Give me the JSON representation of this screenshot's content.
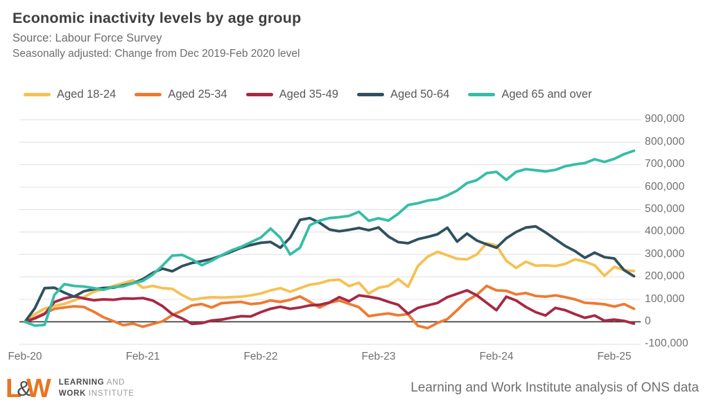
{
  "header": {
    "title": "Economic inactivity levels by age group",
    "source": "Source: Labour Force Survey",
    "note": "Seasonally adjusted: Change from Dec 2019-Feb 2020 level"
  },
  "footer": {
    "logo_l": "L",
    "logo_amp": "&",
    "logo_w": "W",
    "logo_line1_bold": "LEARNING",
    "logo_line1_rest": " AND",
    "logo_line2_bold": "WORK",
    "logo_line2_rest": " INSTITUTE",
    "credit": "Learning and Work Institute analysis of ONS data"
  },
  "colors": {
    "title_text": "#3e3e3e",
    "subtitle_text": "#6c6c6c",
    "axis_text": "#6f6f6f",
    "legend_text": "#58585a",
    "logo_orange": "#e87524",
    "logo_dark": "#4a4a4a"
  },
  "chart_data": {
    "type": "line",
    "title": "Economic inactivity levels by age group",
    "x_frequency": "monthly",
    "values_unit": "thousands",
    "ylim_thousands": [
      -100,
      900
    ],
    "grid": true,
    "grid_color": "#e3e3e3",
    "zero_line_color": "#404040",
    "legend_position": "top",
    "y_ticks": [
      {
        "label": "900,000",
        "value": 900
      },
      {
        "label": "800,000",
        "value": 800
      },
      {
        "label": "700,000",
        "value": 700
      },
      {
        "label": "600,000",
        "value": 600
      },
      {
        "label": "500,000",
        "value": 500
      },
      {
        "label": "400,000",
        "value": 400
      },
      {
        "label": "300,000",
        "value": 300
      },
      {
        "label": "200,000",
        "value": 200
      },
      {
        "label": "100,000",
        "value": 100
      },
      {
        "label": "0",
        "value": 0
      },
      {
        "label": "-100,000",
        "value": -100
      }
    ],
    "x_ticks": [
      {
        "label": "Feb-20",
        "month": 0
      },
      {
        "label": "Feb-21",
        "month": 12
      },
      {
        "label": "Feb-22",
        "month": 24
      },
      {
        "label": "Feb-23",
        "month": 36
      },
      {
        "label": "Feb-24",
        "month": 48
      },
      {
        "label": "Feb-25",
        "month": 60
      }
    ],
    "series": [
      {
        "id": "aged-18-24",
        "name": "Aged 18-24",
        "color": "#f5c152",
        "values": [
          0,
          34,
          59,
          71,
          80,
          95,
          110,
          134,
          145,
          160,
          172,
          185,
          152,
          160,
          150,
          147,
          119,
          98,
          105,
          110,
          108,
          110,
          112,
          118,
          126,
          140,
          150,
          134,
          150,
          165,
          172,
          185,
          188,
          159,
          174,
          126,
          152,
          160,
          190,
          156,
          248,
          290,
          312,
          296,
          281,
          278,
          300,
          350,
          340,
          272,
          240,
          268,
          250,
          252,
          248,
          258,
          278,
          268,
          252,
          205,
          245,
          230,
          226
        ]
      },
      {
        "id": "aged-25-34",
        "name": "Aged 25-34",
        "color": "#ee7a31",
        "values": [
          0,
          18,
          38,
          58,
          64,
          69,
          66,
          45,
          20,
          3,
          -15,
          -8,
          -22,
          -10,
          2,
          30,
          50,
          73,
          79,
          64,
          83,
          86,
          89,
          79,
          83,
          95,
          89,
          98,
          113,
          89,
          64,
          85,
          95,
          80,
          65,
          25,
          32,
          37,
          29,
          34,
          -18,
          -28,
          -5,
          12,
          52,
          95,
          120,
          160,
          140,
          138,
          122,
          128,
          115,
          112,
          118,
          110,
          100,
          85,
          82,
          78,
          68,
          79,
          58
        ]
      },
      {
        "id": "aged-35-49",
        "name": "Aged 35-49",
        "color": "#a62945",
        "values": [
          0,
          15,
          35,
          88,
          104,
          114,
          104,
          96,
          100,
          98,
          104,
          103,
          106,
          95,
          70,
          34,
          15,
          -9,
          -6,
          6,
          10,
          18,
          25,
          24,
          43,
          58,
          67,
          58,
          64,
          73,
          76,
          86,
          110,
          92,
          118,
          112,
          104,
          89,
          76,
          36,
          62,
          73,
          84,
          110,
          125,
          140,
          118,
          85,
          52,
          112,
          95,
          66,
          43,
          28,
          62,
          52,
          34,
          18,
          28,
          5,
          10,
          4,
          -8
        ]
      },
      {
        "id": "aged-50-64",
        "name": "Aged 50-64",
        "color": "#30505f",
        "values": [
          0,
          60,
          150,
          152,
          130,
          112,
          136,
          145,
          151,
          152,
          162,
          172,
          190,
          218,
          237,
          225,
          248,
          262,
          270,
          280,
          295,
          312,
          330,
          342,
          352,
          356,
          330,
          375,
          454,
          462,
          441,
          411,
          403,
          410,
          418,
          408,
          420,
          380,
          355,
          350,
          368,
          378,
          390,
          419,
          357,
          393,
          362,
          345,
          330,
          372,
          400,
          420,
          425,
          398,
          368,
          338,
          315,
          285,
          308,
          288,
          282,
          230,
          203
        ]
      },
      {
        "id": "aged-65-over",
        "name": "Aged 65 and over",
        "color": "#35bea5",
        "values": [
          0,
          -17,
          -14,
          120,
          168,
          160,
          157,
          150,
          143,
          155,
          158,
          172,
          182,
          210,
          250,
          295,
          298,
          278,
          252,
          272,
          296,
          318,
          334,
          355,
          375,
          415,
          375,
          300,
          330,
          430,
          451,
          462,
          466,
          472,
          490,
          450,
          461,
          451,
          481,
          520,
          528,
          540,
          546,
          563,
          585,
          618,
          631,
          662,
          668,
          632,
          668,
          680,
          675,
          670,
          677,
          693,
          701,
          707,
          724,
          712,
          726,
          747,
          762
        ]
      }
    ]
  }
}
